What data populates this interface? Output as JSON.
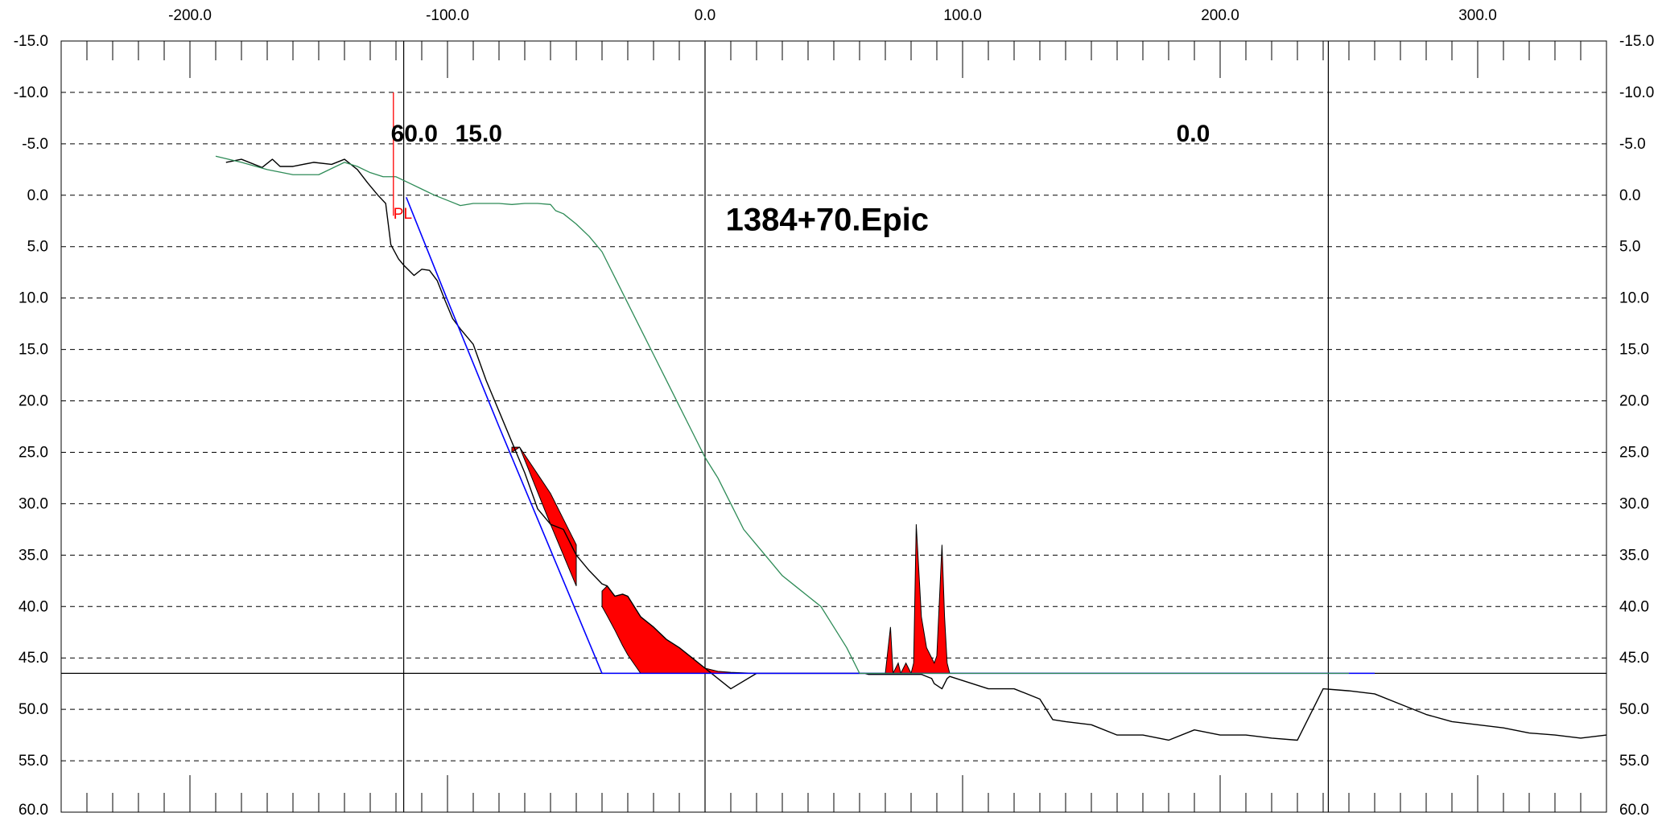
{
  "chart_data": {
    "type": "line",
    "title": "1384+70.Epic",
    "grid": true,
    "xlim": [
      -250,
      350
    ],
    "ylim": [
      -15,
      60
    ],
    "y_inverted": true,
    "x_tick_values": [
      -200,
      -100,
      0,
      100,
      200,
      300
    ],
    "x_tick_labels": [
      "-200.0",
      "-100.0",
      "0.0",
      "100.0",
      "200.0",
      "300.0"
    ],
    "y_tick_values": [
      -15,
      -10,
      -5,
      0,
      5,
      10,
      15,
      20,
      25,
      30,
      35,
      40,
      45,
      50,
      55,
      60
    ],
    "y_tick_labels": [
      "-15.0",
      "-10.0",
      "-5.0",
      "0.0",
      "5.0",
      "10.0",
      "15.0",
      "20.0",
      "25.0",
      "30.0",
      "35.0",
      "40.0",
      "45.0",
      "50.0",
      "55.0",
      "60.0"
    ],
    "vertical_lines_x": [
      -117,
      0,
      242
    ],
    "horizontal_line_y": 46.5,
    "annotations": [
      {
        "text": "60.0",
        "x": -122,
        "y": -6
      },
      {
        "text": "15.0",
        "x": -97,
        "y": -6
      },
      {
        "text": "0.0",
        "x": 183,
        "y": -6
      },
      {
        "text": "PL",
        "x": -121,
        "y": 1.2
      }
    ],
    "pl_marker": {
      "x": -121,
      "y_top": -10,
      "y_bottom": 2
    },
    "colors": {
      "existing": "#000000",
      "design": "#0000ff",
      "alternate": "#2e8b57",
      "cut_fill": "#ff0000",
      "pl": "#ff0000"
    },
    "series": [
      {
        "key": "existing",
        "x": [
          -186,
          -180,
          -172,
          -168,
          -165,
          -160,
          -152,
          -145,
          -140,
          -135,
          -131,
          -127,
          -124,
          -122,
          -119,
          -117,
          -113,
          -110,
          -107,
          -104,
          -101,
          -98,
          -95,
          -90,
          -85,
          -80,
          -75,
          -70,
          -65,
          -60,
          -55,
          -50,
          -45,
          -40,
          -38,
          -35,
          -32,
          -30,
          -25,
          -20,
          -15,
          -10,
          -5,
          0,
          5,
          10,
          20,
          30,
          40,
          50,
          55,
          60,
          62,
          63.5,
          65,
          66,
          68,
          70,
          72,
          73,
          75,
          78,
          80,
          81,
          82,
          84,
          86,
          88,
          89,
          92,
          93,
          94,
          95,
          100,
          110,
          120,
          130,
          135,
          140,
          150,
          160,
          170,
          180,
          190,
          200,
          210,
          220,
          230,
          240,
          250,
          260,
          270,
          280,
          290,
          300,
          310,
          320,
          330,
          340,
          350
        ],
        "y": [
          -3.2,
          -3.5,
          -2.7,
          -3.5,
          -2.8,
          -2.8,
          -3.2,
          -3.0,
          -3.5,
          -2.5,
          -1.2,
          0,
          0.8,
          4.8,
          6.2,
          6.8,
          7.8,
          7.2,
          7.3,
          8.3,
          10.2,
          12.0,
          13.0,
          14.5,
          18.0,
          21.0,
          24.0,
          27.0,
          30.5,
          32.0,
          32.5,
          35.0,
          36.5,
          37.8,
          38.0,
          39.0,
          38.8,
          39.0,
          41.0,
          42.0,
          43.2,
          44.0,
          45.0,
          46.0,
          47.0,
          48.0,
          46.5,
          46.5,
          46.5,
          46.5,
          46.5,
          46.5,
          46.5,
          46.6,
          46.6,
          46.6,
          46.6,
          46.6,
          46.6,
          46.6,
          46.6,
          46.6,
          46.6,
          46.6,
          46.6,
          46.6,
          46.8,
          47.0,
          47.5,
          48.0,
          47.5,
          47.0,
          46.8,
          47.2,
          48.0,
          48.0,
          49.0,
          51.0,
          51.2,
          51.5,
          52.5,
          52.5,
          53.0,
          52.0,
          52.5,
          52.5,
          52.8,
          53.0,
          48.0,
          48.2,
          48.5,
          49.5,
          50.5,
          51.2,
          51.5,
          51.8,
          52.3,
          52.5,
          52.8,
          52.5
        ],
        "name": ""
      },
      {
        "key": "design",
        "x": [
          -116,
          -100,
          -80,
          -60,
          -40,
          -20,
          0,
          30,
          60,
          90,
          120,
          150,
          180,
          210,
          240,
          260
        ],
        "y": [
          0.2,
          10.2,
          22.5,
          34.5,
          46.5,
          46.5,
          46.5,
          46.5,
          46.5,
          46.5,
          46.5,
          46.5,
          46.5,
          46.5,
          46.5,
          46.5
        ],
        "name": ""
      },
      {
        "key": "alternate",
        "x": [
          -190,
          -180,
          -170,
          -160,
          -150,
          -140,
          -135,
          -130,
          -125,
          -120,
          -115,
          -110,
          -105,
          -100,
          -95,
          -90,
          -85,
          -80,
          -75,
          -70,
          -65,
          -60,
          -58,
          -55,
          -50,
          -45,
          -40,
          -35,
          -30,
          -25,
          -20,
          -15,
          -10,
          -5,
          0,
          5,
          10,
          15,
          20,
          25,
          30,
          35,
          40,
          45,
          50,
          55,
          60,
          65,
          70,
          75,
          80,
          85,
          90,
          95,
          100,
          110,
          120,
          130,
          140,
          150,
          160,
          170,
          180,
          190,
          200,
          210,
          220,
          230,
          240,
          250
        ],
        "y": [
          -3.8,
          -3.2,
          -2.5,
          -2.0,
          -2.0,
          -3.2,
          -2.8,
          -2.2,
          -1.8,
          -1.8,
          -1.2,
          -0.6,
          0,
          0.5,
          1.0,
          0.8,
          0.8,
          0.8,
          0.9,
          0.8,
          0.8,
          0.9,
          1.5,
          1.8,
          2.8,
          4.0,
          5.5,
          8.0,
          10.5,
          13.0,
          15.5,
          18.0,
          20.5,
          23.0,
          25.5,
          27.5,
          30.0,
          32.5,
          34.0,
          35.5,
          37.0,
          38.0,
          39.0,
          40.0,
          42.0,
          44.0,
          46.5,
          46.5,
          46.5,
          46.5,
          46.5,
          46.5,
          46.5,
          46.5,
          46.5,
          46.5,
          46.5,
          46.5,
          46.5,
          46.5,
          46.5,
          46.5,
          46.5,
          46.5,
          46.5,
          46.5,
          46.5,
          46.5,
          46.5,
          46.5
        ],
        "name": ""
      }
    ],
    "cut_fill_areas": [
      {
        "x": [
          -75,
          -72,
          -68,
          -64,
          -60,
          -55,
          -50
        ],
        "y": [
          25,
          24.5,
          26,
          27.5,
          29,
          31.5,
          34
        ],
        "base_y": [
          24.5,
          24.5,
          27.0,
          29.5,
          32.0,
          35.0,
          38.0
        ]
      },
      {
        "x": [
          -40,
          -38,
          -35,
          -32,
          -30,
          -25,
          -20,
          -15,
          -10,
          -5,
          0,
          5,
          10,
          20,
          30,
          40,
          50,
          55,
          60
        ],
        "y": [
          38.5,
          38.0,
          39.0,
          38.8,
          39.0,
          41.0,
          42.0,
          43.2,
          44.0,
          45.0,
          46.0,
          46.3,
          46.4,
          46.5,
          46.5,
          46.5,
          46.5,
          46.5,
          46.5
        ],
        "base_y": [
          40.0,
          40.9,
          42.3,
          43.8,
          44.7,
          46.5,
          46.5,
          46.5,
          46.5,
          46.5,
          46.5,
          46.5,
          46.5,
          46.5,
          46.5,
          46.5,
          46.5,
          46.5,
          46.5
        ]
      },
      {
        "x": [
          70,
          72,
          73,
          75,
          76,
          78,
          80,
          81,
          82,
          84,
          86,
          88,
          89,
          90,
          92,
          93,
          94,
          95
        ],
        "y": [
          46.5,
          42.0,
          46.5,
          45.5,
          46.5,
          45.5,
          46.5,
          45.5,
          32.0,
          41.0,
          44.0,
          45.0,
          45.5,
          44.8,
          34.0,
          41.0,
          45.5,
          46.5
        ],
        "base_y": [
          46.5,
          46.5,
          46.5,
          46.5,
          46.5,
          46.5,
          46.5,
          46.5,
          46.5,
          46.5,
          46.5,
          46.5,
          46.5,
          46.5,
          46.5,
          46.5,
          46.5,
          46.5
        ]
      }
    ]
  }
}
